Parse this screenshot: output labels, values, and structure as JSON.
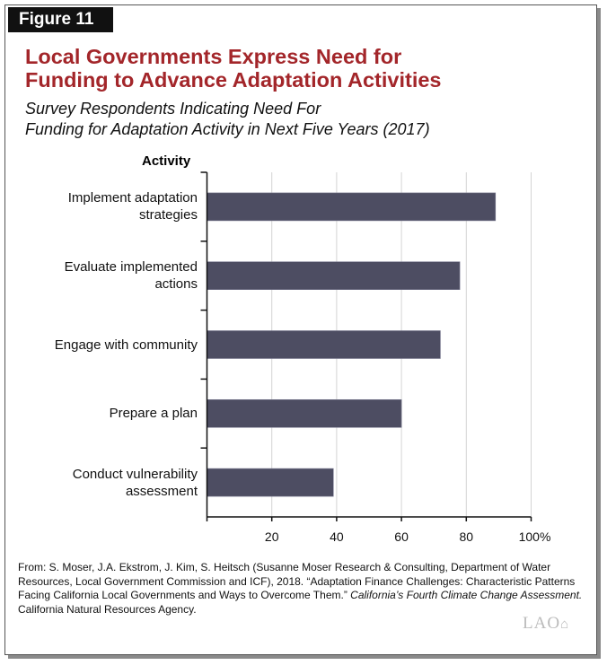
{
  "figure_label": "Figure 11",
  "title_lines": [
    "Local Governments Express Need for",
    "Funding to Advance Adaptation Activities"
  ],
  "subtitle_lines": [
    "Survey Respondents Indicating Need For",
    "Funding for Adaptation Activity in Next Five Years (2017)"
  ],
  "chart_data": {
    "type": "bar",
    "orientation": "horizontal",
    "title": "Local Governments Express Need for Funding to Advance Adaptation Activities",
    "subtitle": "Survey Respondents Indicating Need For Funding for Adaptation Activity in Next Five Years (2017)",
    "ylabel": "Activity",
    "xlabel": "",
    "categories": [
      [
        "Implement adaptation",
        "strategies"
      ],
      [
        "Evaluate implemented",
        "actions"
      ],
      [
        "Engage with community"
      ],
      [
        "Prepare a plan"
      ],
      [
        "Conduct vulnerability",
        "assessment"
      ]
    ],
    "values": [
      89,
      78,
      72,
      60,
      39
    ],
    "xlim": [
      0,
      100
    ],
    "xticks": [
      "20",
      "40",
      "60",
      "80",
      "100%"
    ],
    "xtick_values": [
      20,
      40,
      60,
      80,
      100
    ],
    "grid": true,
    "bar_color": "#4d4d62"
  },
  "source": {
    "text": "From: S. Moser, J.A. Ekstrom, J. Kim, S. Heitsch (Susanne Moser Research & Consulting, Department of Water Resources, Local Government Commission and ICF), 2018. “Adaptation Finance Challenges: Characteristic Patterns Facing California Local Governments and Ways to Overcome Them.” ",
    "italic": "California’s Fourth Climate Change Assessment.",
    "tail": " California Natural Resources Agency."
  },
  "logo": "LAO"
}
